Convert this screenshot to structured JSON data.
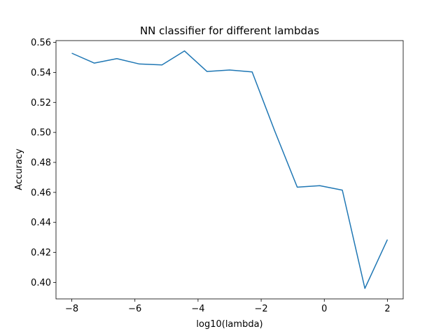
{
  "chart_data": {
    "type": "line",
    "title": "NN classifier for different lambdas",
    "xlabel": "log10(lambda)",
    "ylabel": "Accuracy",
    "xlim": [
      -8.5,
      2.5
    ],
    "ylim": [
      0.389,
      0.5612
    ],
    "grid": false,
    "xticks": [
      -8,
      -6,
      -4,
      -2,
      0,
      2
    ],
    "xtick_labels": [
      "−8",
      "−6",
      "−4",
      "−2",
      "0",
      "2"
    ],
    "yticks": [
      0.4,
      0.42,
      0.44,
      0.46,
      0.48,
      0.5,
      0.52,
      0.54,
      0.56
    ],
    "ytick_labels": [
      "0.40",
      "0.42",
      "0.44",
      "0.46",
      "0.48",
      "0.50",
      "0.52",
      "0.54",
      "0.56"
    ],
    "line_color": "#1f77b4",
    "series": [
      {
        "x": [
          -8.0,
          -7.2857,
          -6.5714,
          -5.8571,
          -5.1429,
          -4.4286,
          -3.7143,
          -3.0,
          -2.2857,
          -1.5714,
          -0.8571,
          -0.1429,
          0.5714,
          1.2857,
          2.0
        ],
        "y": [
          0.5528,
          0.5462,
          0.5492,
          0.5456,
          0.545,
          0.5543,
          0.5406,
          0.5416,
          0.5403,
          0.501,
          0.4635,
          0.4645,
          0.4615,
          0.396,
          0.4285
        ]
      }
    ]
  }
}
